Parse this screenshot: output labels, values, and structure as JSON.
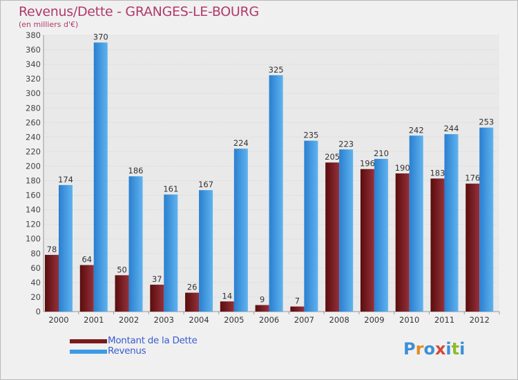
{
  "header": {
    "title": "Revenus/Dette - GRANGES-LE-BOURG",
    "subtitle": "(en milliers d'€)"
  },
  "legend": {
    "items": [
      {
        "label": "Montant de la Dette",
        "color": "#7a1a1a"
      },
      {
        "label": "Revenus",
        "color": "#3d9be3"
      }
    ]
  },
  "logo": {
    "text": "Proxiti",
    "colors": [
      "#3d8fd6",
      "#e38a1e",
      "#3d8fd6",
      "#d4483a",
      "#3d8fd6",
      "#8dbb2a",
      "#3d8fd6"
    ]
  },
  "chart_data": {
    "type": "bar",
    "title": "Revenus/Dette - GRANGES-LE-BOURG",
    "subtitle": "(en milliers d'€)",
    "categories": [
      "2000",
      "2001",
      "2002",
      "2003",
      "2004",
      "2005",
      "2006",
      "2007",
      "2008",
      "2009",
      "2010",
      "2011",
      "2012"
    ],
    "series": [
      {
        "name": "Montant de la Dette",
        "color": "#7a1a1a",
        "values": [
          78,
          64,
          50,
          37,
          26,
          14,
          9,
          7,
          205,
          196,
          190,
          183,
          176
        ]
      },
      {
        "name": "Revenus",
        "color": "#3d9be3",
        "values": [
          174,
          370,
          186,
          161,
          167,
          224,
          325,
          235,
          223,
          210,
          242,
          244,
          253
        ]
      }
    ],
    "ylim": [
      0,
      380
    ],
    "ytick_step": 20,
    "grid": true,
    "legend_position": "bottom-left"
  }
}
